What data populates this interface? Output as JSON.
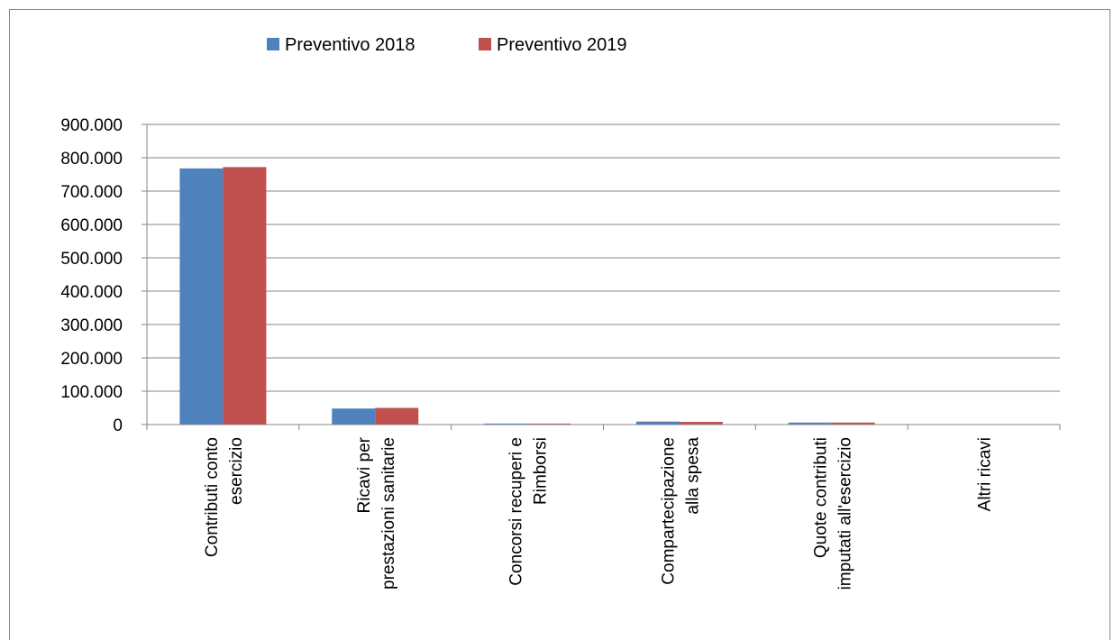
{
  "chart_data": {
    "type": "bar",
    "categories": [
      [
        "Contributi conto",
        "esercizio"
      ],
      [
        "Ricavi per",
        "prestazioni sanitarie"
      ],
      [
        "Concorsi recuperi e",
        "Rimborsi"
      ],
      [
        "Compartecipazione",
        "alla spesa"
      ],
      [
        "Quote contributi",
        "imputati all'esercizio"
      ],
      [
        "Altri ricavi"
      ]
    ],
    "series": [
      {
        "name": "Preventivo 2018",
        "color": "#4f81bd",
        "values": [
          768000,
          48000,
          3000,
          9000,
          6000,
          0
        ]
      },
      {
        "name": "Preventivo 2019",
        "color": "#c0504d",
        "values": [
          772000,
          50000,
          3000,
          8000,
          6000,
          0
        ]
      }
    ],
    "ylim": [
      0,
      900000
    ],
    "yticks": [
      0,
      100000,
      200000,
      300000,
      400000,
      500000,
      600000,
      700000,
      800000,
      900000
    ],
    "ytick_labels": [
      "0",
      "100.000",
      "200.000",
      "300.000",
      "400.000",
      "500.000",
      "600.000",
      "700.000",
      "800.000",
      "900.000"
    ],
    "grid": true,
    "legend_position": "top-center",
    "title": "",
    "xlabel": "",
    "ylabel": ""
  }
}
